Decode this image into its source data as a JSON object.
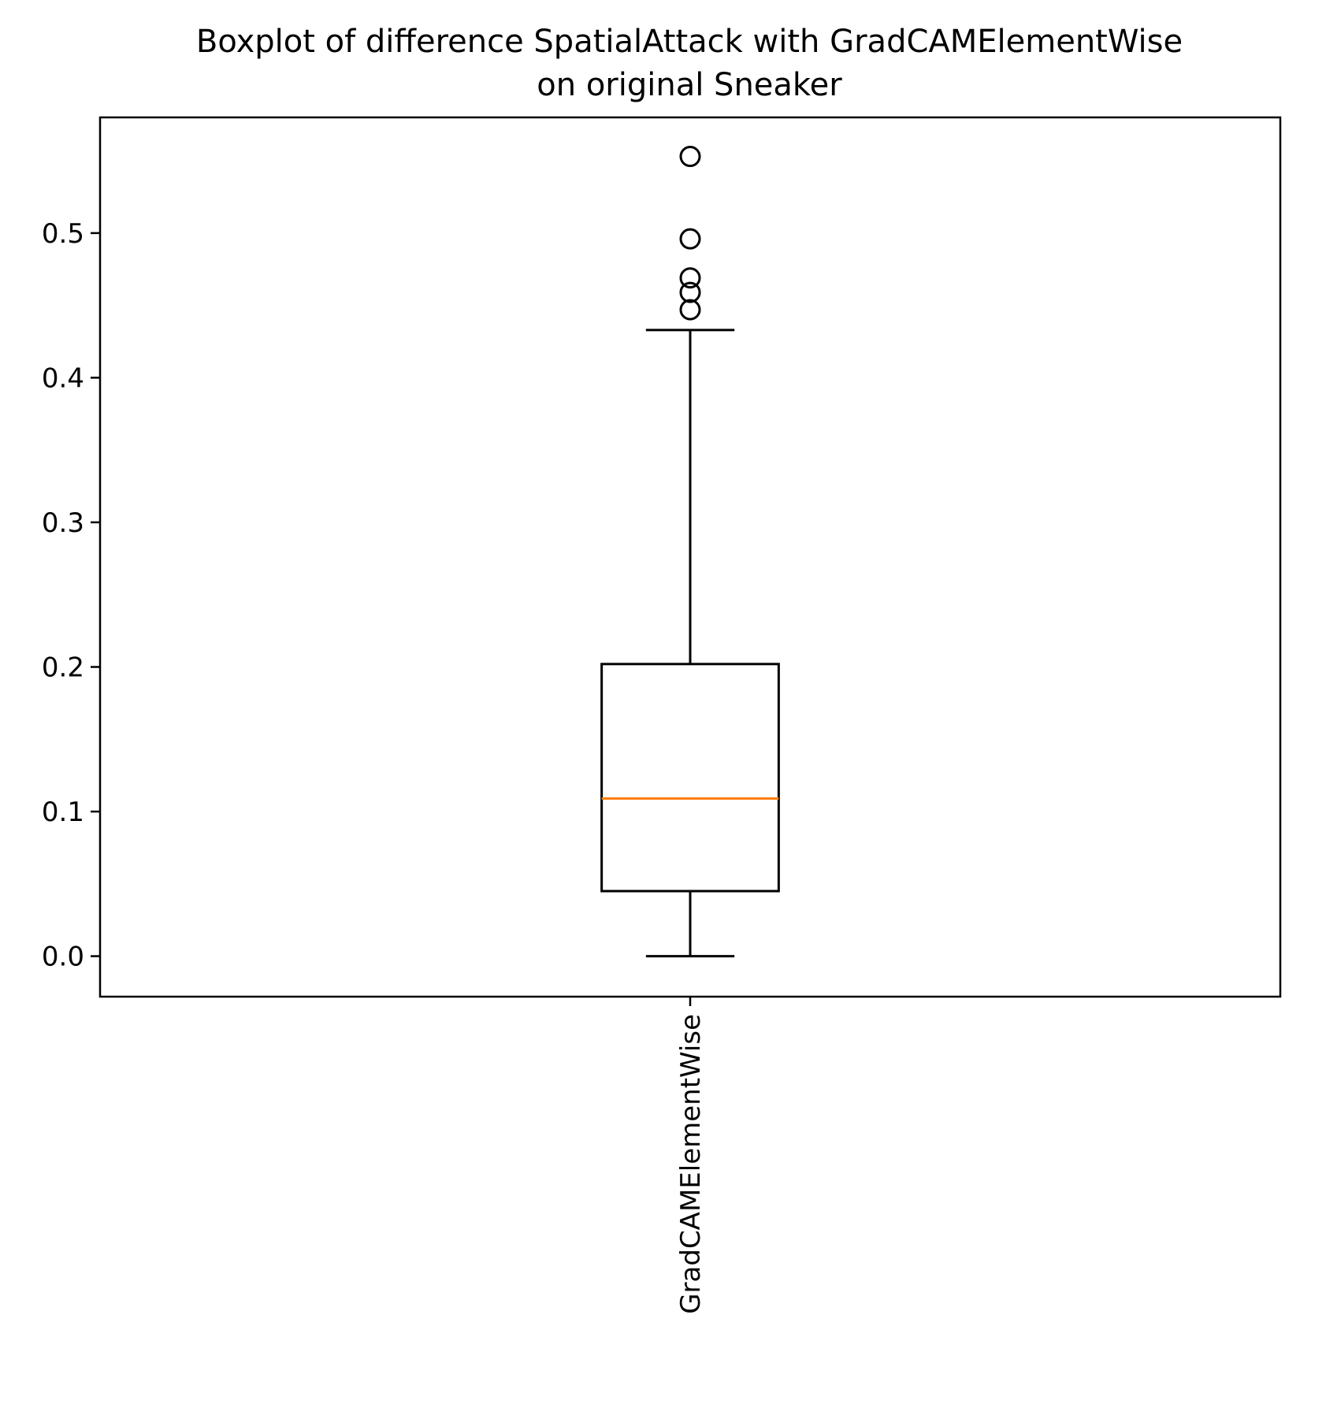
{
  "chart_data": {
    "type": "boxplot",
    "title": "Boxplot of difference SpatialAttack with GradCAMElementWise",
    "subtitle": "on original Sneaker",
    "xlabel": "",
    "ylabel": "",
    "ylim": [
      -0.028,
      0.58
    ],
    "yticks": [
      0.0,
      0.1,
      0.2,
      0.3,
      0.4,
      0.5
    ],
    "ytick_labels": [
      "0.0",
      "0.1",
      "0.2",
      "0.3",
      "0.4",
      "0.5"
    ],
    "grid": false,
    "legend": "none",
    "categories": [
      "GradCAMElementWise"
    ],
    "boxes": [
      {
        "label": "GradCAMElementWise",
        "whisker_low": 0.0,
        "q1": 0.045,
        "median": 0.109,
        "q3": 0.202,
        "whisker_high": 0.433,
        "outliers": [
          0.447,
          0.459,
          0.469,
          0.496,
          0.553
        ]
      }
    ],
    "colors": {
      "box": "#000000",
      "median": "#ff7f0e",
      "frame": "#000000"
    }
  }
}
